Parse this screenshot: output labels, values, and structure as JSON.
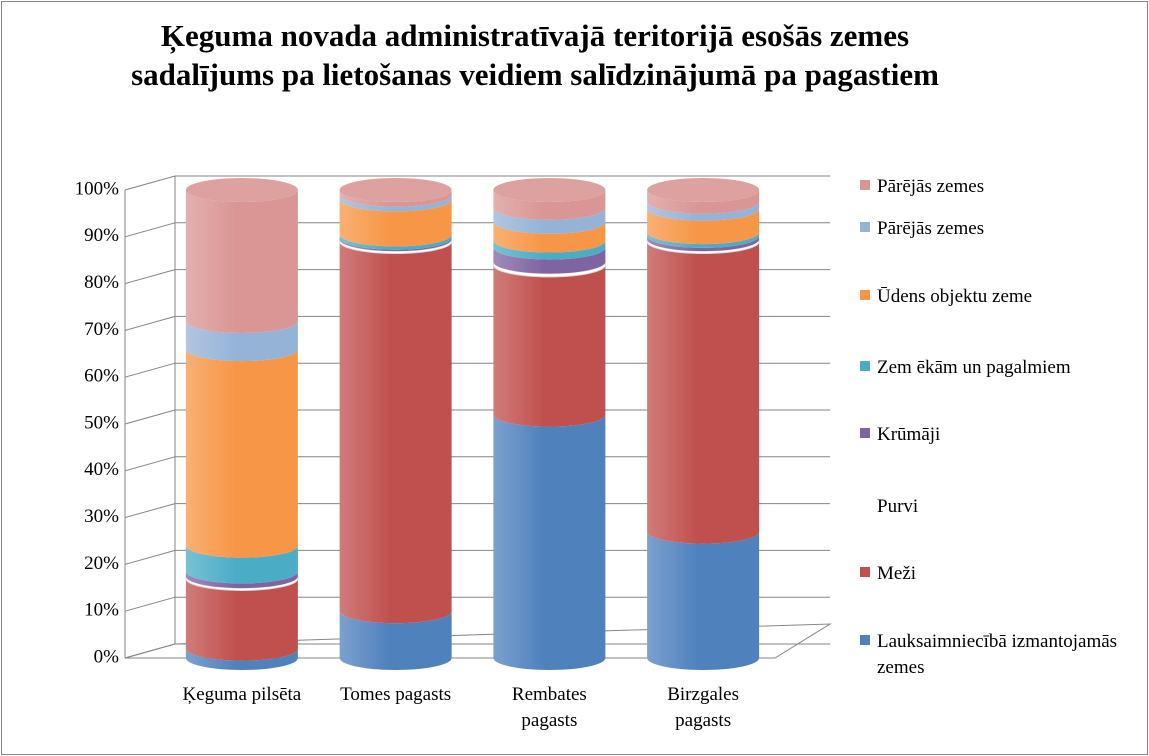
{
  "chart_data": {
    "type": "bar",
    "stacked": true,
    "cylinder": true,
    "title": "Ķeguma novada administratīvajā teritorijā esošās zemes sadalījums pa lietošanas veidiem salīdzinājumā pa pagastiem",
    "categories": [
      "Ķeguma pilsēta",
      "Tomes pagasts",
      "Rembates pagasts",
      "Birzgales pagasts"
    ],
    "series": [
      {
        "name": "Lauksaimniecībā izmantojamās zemes",
        "color": "#4f81bd",
        "values": [
          2,
          10,
          52,
          27
        ]
      },
      {
        "name": "Meži",
        "color": "#c0504d",
        "values": [
          15,
          79,
          32,
          62
        ]
      },
      {
        "name": "Purvi",
        "color": "#ffffff",
        "values": [
          0.5,
          0.5,
          0.7,
          0.5
        ]
      },
      {
        "name": "Krūmāji",
        "color": "#8064a2",
        "values": [
          1,
          0.3,
          3,
          0.7
        ]
      },
      {
        "name": "Zem ēkām un pagalmiem",
        "color": "#4bacc6",
        "values": [
          5.5,
          0.7,
          1.5,
          0.8
        ]
      },
      {
        "name": "Ūdens objektu zeme",
        "color": "#f79646",
        "values": [
          42,
          7.5,
          4,
          5
        ]
      },
      {
        "name": "Pārējās zemes",
        "color": "#95b3d7",
        "values": [
          6,
          1,
          3,
          1.5
        ]
      },
      {
        "name": "Pārējās zemes",
        "color": "#d99694",
        "values": [
          28,
          1,
          3.8,
          2.5
        ]
      }
    ],
    "ylim": [
      0,
      100
    ],
    "yticks": [
      {
        "value": 0,
        "label": "0%"
      },
      {
        "value": 10,
        "label": "10%"
      },
      {
        "value": 20,
        "label": "20%"
      },
      {
        "value": 30,
        "label": "30%"
      },
      {
        "value": 40,
        "label": "40%"
      },
      {
        "value": 50,
        "label": "50%"
      },
      {
        "value": 60,
        "label": "60%"
      },
      {
        "value": 70,
        "label": "70%"
      },
      {
        "value": 80,
        "label": "80%"
      },
      {
        "value": 90,
        "label": "90%"
      },
      {
        "value": 100,
        "label": "100%"
      }
    ],
    "grid": true,
    "legend": "right"
  }
}
